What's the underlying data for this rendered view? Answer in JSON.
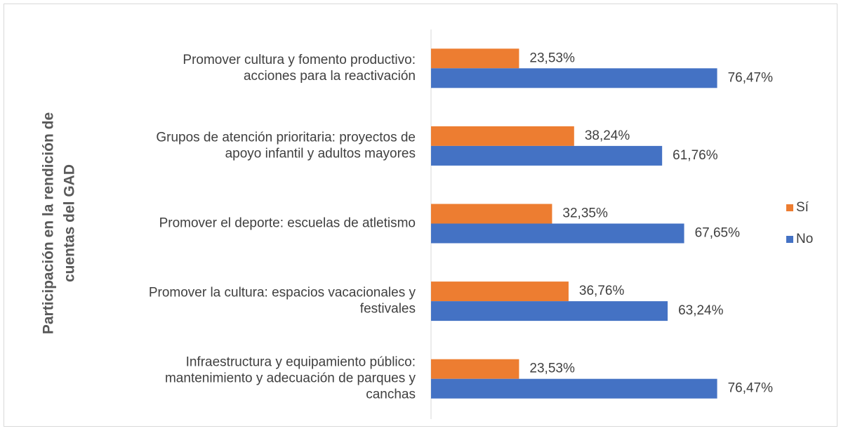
{
  "chart_data": {
    "type": "bar",
    "orientation": "horizontal",
    "y_axis_label": [
      "Participación en la rendición de",
      "cuentas del GAD"
    ],
    "categories": [
      [
        "Promover cultura y fomento productivo:",
        "acciones para la reactivación"
      ],
      [
        "Grupos de atención prioritaria: proyectos de",
        "apoyo infantil y adultos mayores"
      ],
      [
        "Promover el deporte: escuelas de atletismo"
      ],
      [
        "Promover la cultura: espacios vacacionales y",
        "festivales"
      ],
      [
        "Infraestructura y equipamiento público:",
        "mantenimiento y adecuación de parques y",
        "canchas"
      ]
    ],
    "series": [
      {
        "name": "Sí",
        "color": "#ed7d31",
        "values": [
          23.53,
          38.24,
          32.35,
          36.76,
          23.53
        ],
        "value_labels": [
          "23,53%",
          "38,24%",
          "32,35%",
          "36,76%",
          "23,53%"
        ]
      },
      {
        "name": "No",
        "color": "#4472c4",
        "values": [
          76.47,
          61.76,
          67.65,
          63.24,
          76.47
        ],
        "value_labels": [
          "76,47%",
          "61,76%",
          "67,65%",
          "63,24%",
          "76,47%"
        ]
      }
    ],
    "xlim": [
      0,
      100
    ],
    "legend": "right"
  }
}
